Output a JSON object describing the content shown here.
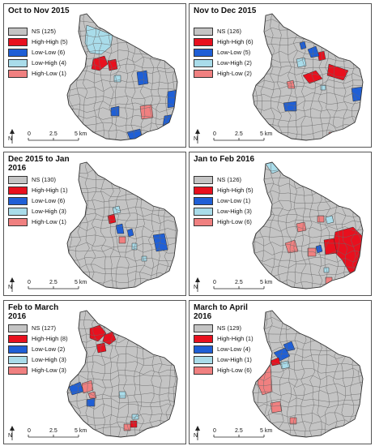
{
  "colors": {
    "ns": "#c4c4c4",
    "high_high": "#e8101e",
    "low_low": "#1f5fd6",
    "low_high": "#a9dcea",
    "high_low": "#f08080"
  },
  "icons": {
    "north_arrow": "north-arrow-icon"
  },
  "scale_bar": {
    "ticks": [
      "0",
      "2.5",
      "5 km"
    ],
    "north_label": "N"
  },
  "panels": [
    {
      "title": "Oct to Nov 2015",
      "legend": [
        {
          "key": "ns",
          "label": "NS (125)"
        },
        {
          "key": "high_high",
          "label": "High-High (5)"
        },
        {
          "key": "low_low",
          "label": "Low-Low (6)"
        },
        {
          "key": "low_high",
          "label": "Low-High (4)"
        },
        {
          "key": "high_low",
          "label": "High-Low (1)"
        }
      ]
    },
    {
      "title": "Nov to Dec 2015",
      "legend": [
        {
          "key": "ns",
          "label": "NS (126)"
        },
        {
          "key": "high_high",
          "label": "High-High (6)"
        },
        {
          "key": "low_low",
          "label": "Low-Low (5)"
        },
        {
          "key": "low_high",
          "label": "Low-High (2)"
        },
        {
          "key": "high_low",
          "label": "High-Low (2)"
        }
      ]
    },
    {
      "title": "Dec 2015 to Jan 2016",
      "legend": [
        {
          "key": "ns",
          "label": "NS (130)"
        },
        {
          "key": "high_high",
          "label": "High-High (1)"
        },
        {
          "key": "low_low",
          "label": "Low-Low (6)"
        },
        {
          "key": "low_high",
          "label": "Low-High (3)"
        },
        {
          "key": "high_low",
          "label": "High-Low (1)"
        }
      ]
    },
    {
      "title": "Jan to Feb 2016",
      "legend": [
        {
          "key": "ns",
          "label": "NS (126)"
        },
        {
          "key": "high_high",
          "label": "High-High (5)"
        },
        {
          "key": "low_low",
          "label": "Low-Low (1)"
        },
        {
          "key": "low_high",
          "label": "Low-High (3)"
        },
        {
          "key": "high_low",
          "label": "High-Low (6)"
        }
      ]
    },
    {
      "title": "Feb to March 2016",
      "legend": [
        {
          "key": "ns",
          "label": "NS (127)"
        },
        {
          "key": "high_high",
          "label": "High-High (8)"
        },
        {
          "key": "low_low",
          "label": "Low-Low (2)"
        },
        {
          "key": "low_high",
          "label": "Low-High (3)"
        },
        {
          "key": "high_low",
          "label": "High-Low (3)"
        }
      ]
    },
    {
      "title": "March to April 2016",
      "legend": [
        {
          "key": "ns",
          "label": "NS (129)"
        },
        {
          "key": "high_high",
          "label": "High-High (1)"
        },
        {
          "key": "low_low",
          "label": "Low-Low (4)"
        },
        {
          "key": "low_high",
          "label": "Low-High (1)"
        },
        {
          "key": "high_low",
          "label": "High-Low (6)"
        }
      ]
    }
  ]
}
